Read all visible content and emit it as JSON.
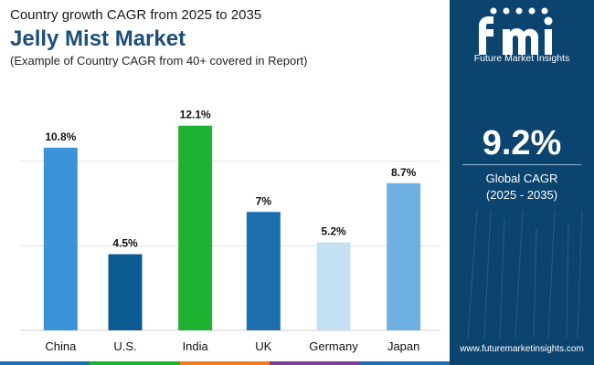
{
  "header": {
    "subtitle": "Country growth CAGR from 2025 to 2035",
    "title": "Jelly Mist Market",
    "note": "(Example of Country CAGR from 40+ covered in Report)"
  },
  "chart_data": {
    "type": "bar",
    "categories": [
      "China",
      "U.S.",
      "India",
      "UK",
      "Germany",
      "Japan"
    ],
    "values": [
      10.8,
      4.5,
      12.1,
      7,
      5.2,
      8.7
    ],
    "labels": [
      "10.8%",
      "4.5%",
      "12.1%",
      "7%",
      "5.2%",
      "8.7%"
    ],
    "colors": [
      "#3a93d9",
      "#0c5a92",
      "#1fb232",
      "#1d6fae",
      "#c4e1f4",
      "#6fb0e2"
    ],
    "ylim": [
      0,
      15
    ],
    "gridlines": [
      5,
      10
    ],
    "grid": true,
    "title": "",
    "xlabel": "",
    "ylabel": ""
  },
  "sidebar": {
    "brand": "Future Market Insights",
    "cagr_value": "9.2%",
    "cagr_label": "Global CAGR",
    "cagr_period": "(2025 - 2035)",
    "website": "www.futuremarketinsights.com"
  },
  "footer": {
    "colors": [
      "#1d6fae",
      "#1fb232",
      "#f07d1f",
      "#7e3f99",
      "#1d6fae"
    ]
  }
}
